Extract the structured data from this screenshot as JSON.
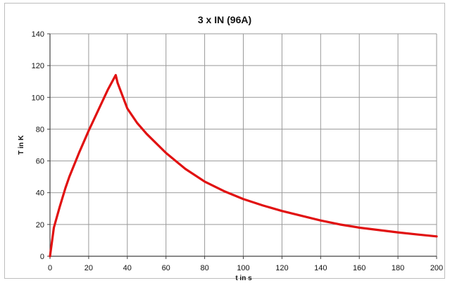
{
  "chart_data": {
    "type": "line",
    "title": "3 x IN (96A)",
    "xlabel": "t in s",
    "ylabel": "T in K",
    "xlim": [
      0,
      200
    ],
    "ylim": [
      0,
      140
    ],
    "xticks": [
      0,
      20,
      40,
      60,
      80,
      100,
      120,
      140,
      160,
      180,
      200
    ],
    "yticks": [
      0,
      20,
      40,
      60,
      80,
      100,
      120,
      140
    ],
    "grid": true,
    "legend": "none",
    "series_color": "#e11111",
    "series": [
      {
        "x": [
          0,
          2,
          5,
          8,
          10,
          15,
          20,
          25,
          30,
          34,
          35,
          40,
          45,
          50,
          60,
          70,
          80,
          90,
          100,
          110,
          120,
          130,
          140,
          150,
          160,
          170,
          180,
          190,
          200
        ],
        "y": [
          0,
          18,
          31,
          43,
          50,
          65,
          79,
          92,
          105,
          114,
          109,
          93,
          84,
          77,
          65,
          55,
          47,
          41,
          36,
          32,
          28.5,
          25.5,
          22.5,
          20,
          18,
          16.5,
          15,
          13.7,
          12.5
        ]
      }
    ]
  }
}
